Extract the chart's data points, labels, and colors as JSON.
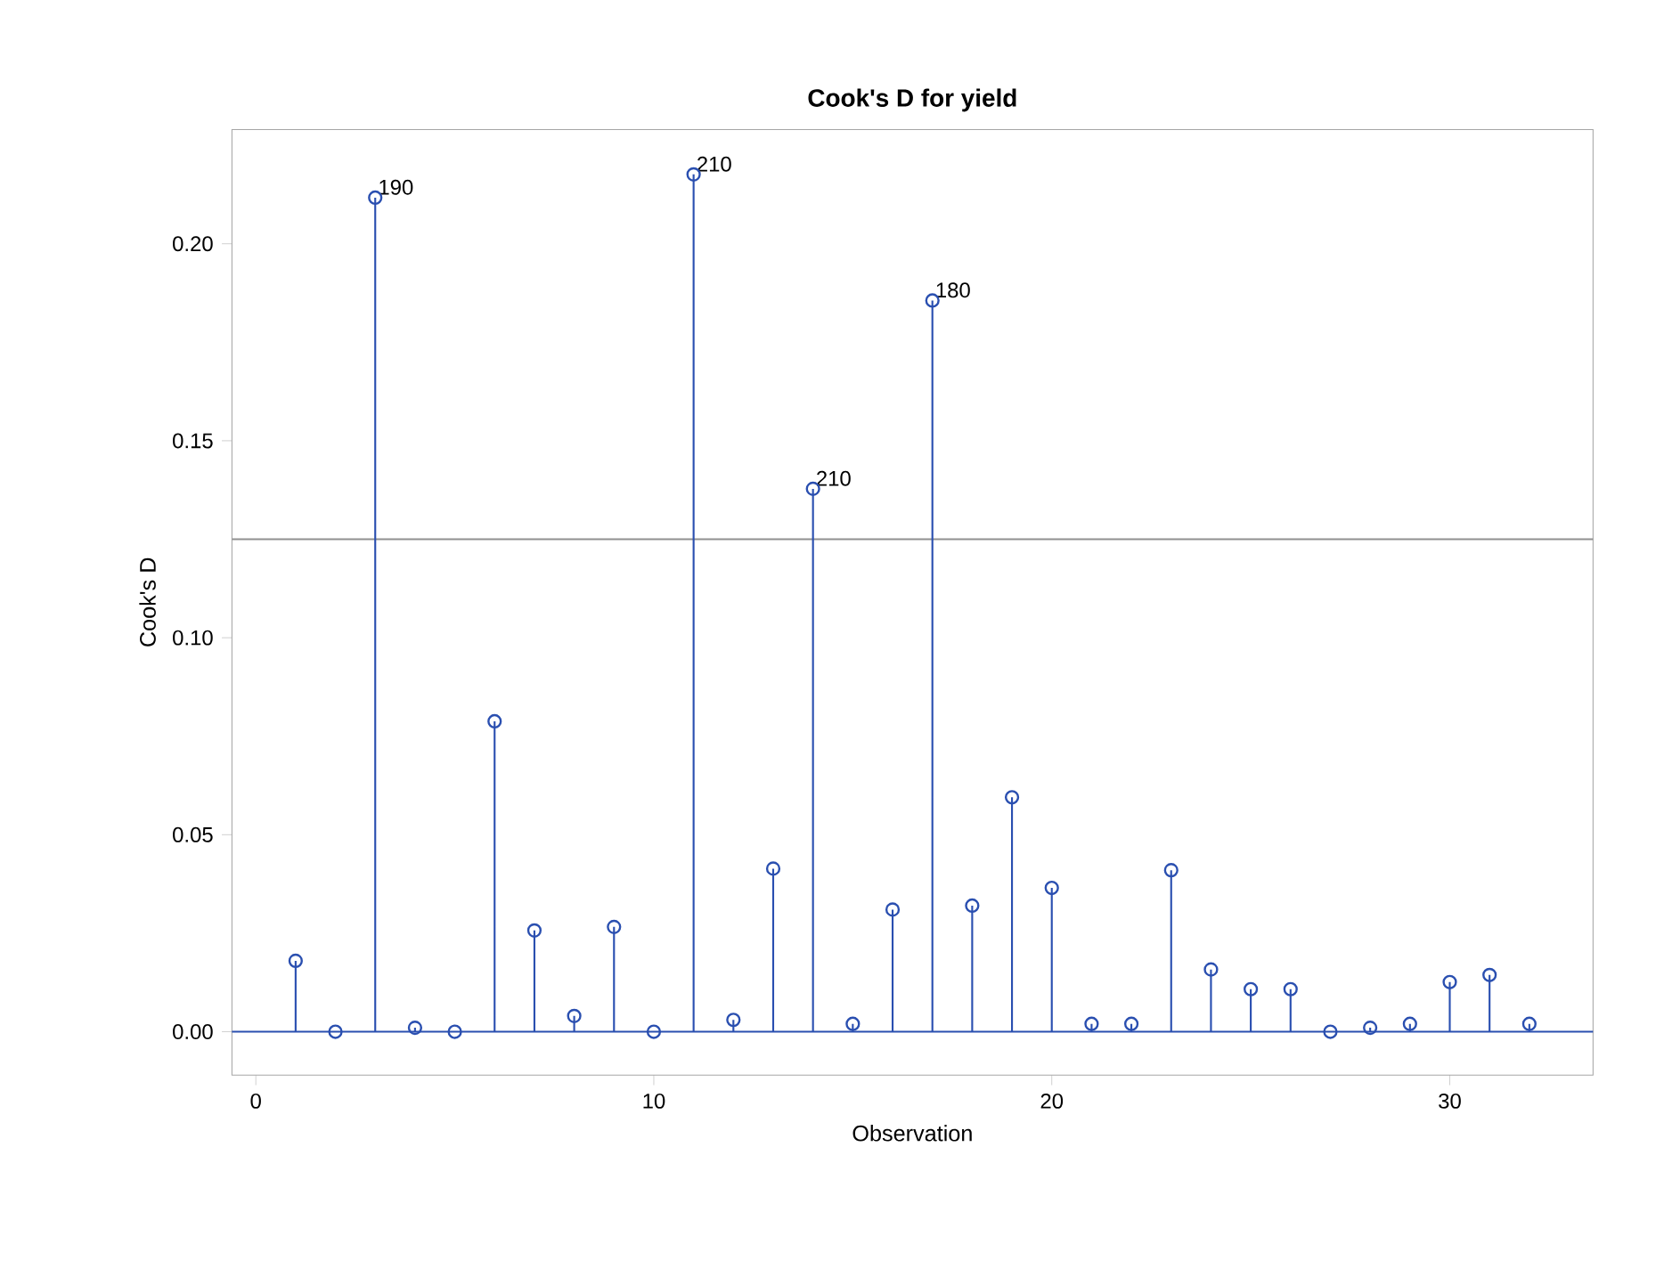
{
  "chart_data": {
    "type": "lollipop",
    "title": "Cook's D for yield",
    "xlabel": "Observation",
    "ylabel": "Cook's D",
    "x": [
      1,
      2,
      3,
      4,
      5,
      6,
      7,
      8,
      9,
      10,
      11,
      12,
      13,
      14,
      15,
      16,
      17,
      18,
      19,
      20,
      21,
      22,
      23,
      24,
      25,
      26,
      27,
      28,
      29,
      30,
      31,
      32
    ],
    "values": [
      0.018,
      0.0,
      0.2117,
      0.001,
      0.0,
      0.0788,
      0.0257,
      0.004,
      0.0266,
      0.0,
      0.2176,
      0.003,
      0.0414,
      0.1378,
      0.002,
      0.031,
      0.1856,
      0.032,
      0.0595,
      0.0365,
      0.002,
      0.002,
      0.041,
      0.0158,
      0.0108,
      0.0108,
      0.0,
      0.001,
      0.002,
      0.0126,
      0.0144,
      0.002
    ],
    "color": "#2a4fb0",
    "marker": "circle",
    "grid": false,
    "xlim": [
      -0.6,
      33.6
    ],
    "ylim": [
      -0.011,
      0.229
    ],
    "xticks": [
      0,
      10,
      20,
      30
    ],
    "yticks": [
      {
        "value": 0,
        "label": "0.00"
      },
      {
        "value": 0.05,
        "label": "0.05"
      },
      {
        "value": 0.1,
        "label": "0.10"
      },
      {
        "value": 0.15,
        "label": "0.15"
      },
      {
        "value": 0.2,
        "label": "0.20"
      }
    ],
    "ref_lines": [
      {
        "axis": "y",
        "value": 0.125,
        "color": "#909090"
      },
      {
        "axis": "y",
        "value": 0,
        "color": "#2a4fb0"
      }
    ],
    "annotations": [
      {
        "text": "190",
        "x": 3,
        "y": 0.2117
      },
      {
        "text": "210",
        "x": 11,
        "y": 0.2176
      },
      {
        "text": "210",
        "x": 14,
        "y": 0.1378
      },
      {
        "text": "180",
        "x": 17,
        "y": 0.1856
      }
    ]
  }
}
